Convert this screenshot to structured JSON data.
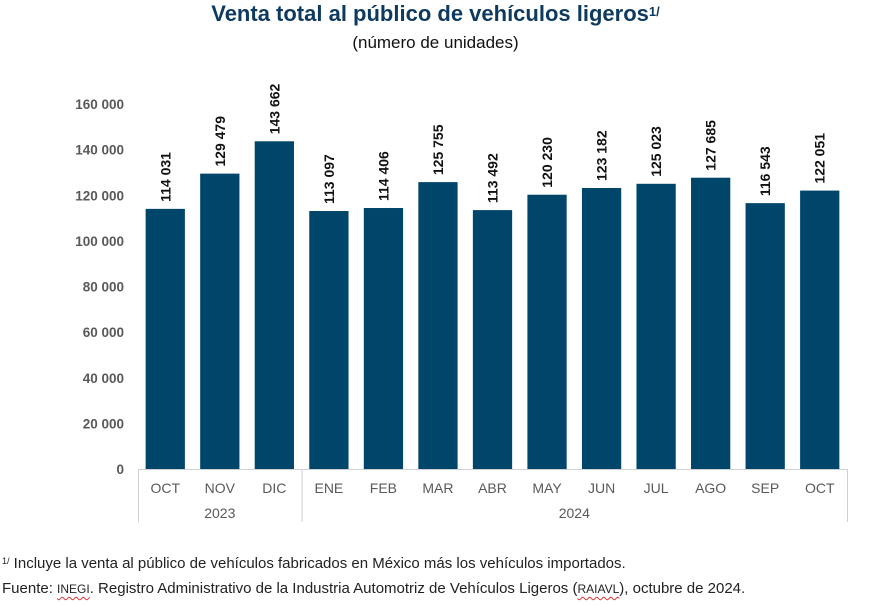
{
  "chart_data": {
    "type": "bar",
    "title": "Venta total al público de vehículos ligeros",
    "title_superscript": "1/",
    "subtitle": "(número de unidades)",
    "xlabel": "",
    "ylabel": "",
    "ylim": [
      0,
      160000
    ],
    "yticks": [
      0,
      20000,
      40000,
      60000,
      80000,
      100000,
      120000,
      140000,
      160000
    ],
    "ytick_labels": [
      "0",
      "20 000",
      "40 000",
      "60 000",
      "80 000",
      "100 000",
      "120 000",
      "140 000",
      "160 000"
    ],
    "categories": [
      "OCT",
      "NOV",
      "DIC",
      "ENE",
      "FEB",
      "MAR",
      "ABR",
      "MAY",
      "JUN",
      "JUL",
      "AGO",
      "SEP",
      "OCT"
    ],
    "category_groups": [
      {
        "label": "2023",
        "count": 3
      },
      {
        "label": "2024",
        "count": 10
      }
    ],
    "values": [
      114031,
      129479,
      143662,
      113097,
      114406,
      125755,
      113492,
      120230,
      123182,
      125023,
      127685,
      116543,
      122051
    ],
    "data_labels": [
      "114 031",
      "129 479",
      "143 662",
      "113 097",
      "114 406",
      "125 755",
      "113 492",
      "120 230",
      "123 182",
      "125 023",
      "127 685",
      "116 543",
      "122 051"
    ],
    "bar_color": "#00466a",
    "grid": false,
    "legend": "none"
  },
  "footnotes": {
    "note_marker": "1/",
    "note_text": " Incluye la venta al público de vehículos fabricados en México más los vehículos importados.",
    "source_prefix": "Fuente: ",
    "source_org": "INEGI",
    "source_middle": ". Registro Administrativo de la Industria Automotriz de Vehículos Ligeros (",
    "source_acronym": "RAIAVL",
    "source_suffix": "), octubre de 2024."
  }
}
